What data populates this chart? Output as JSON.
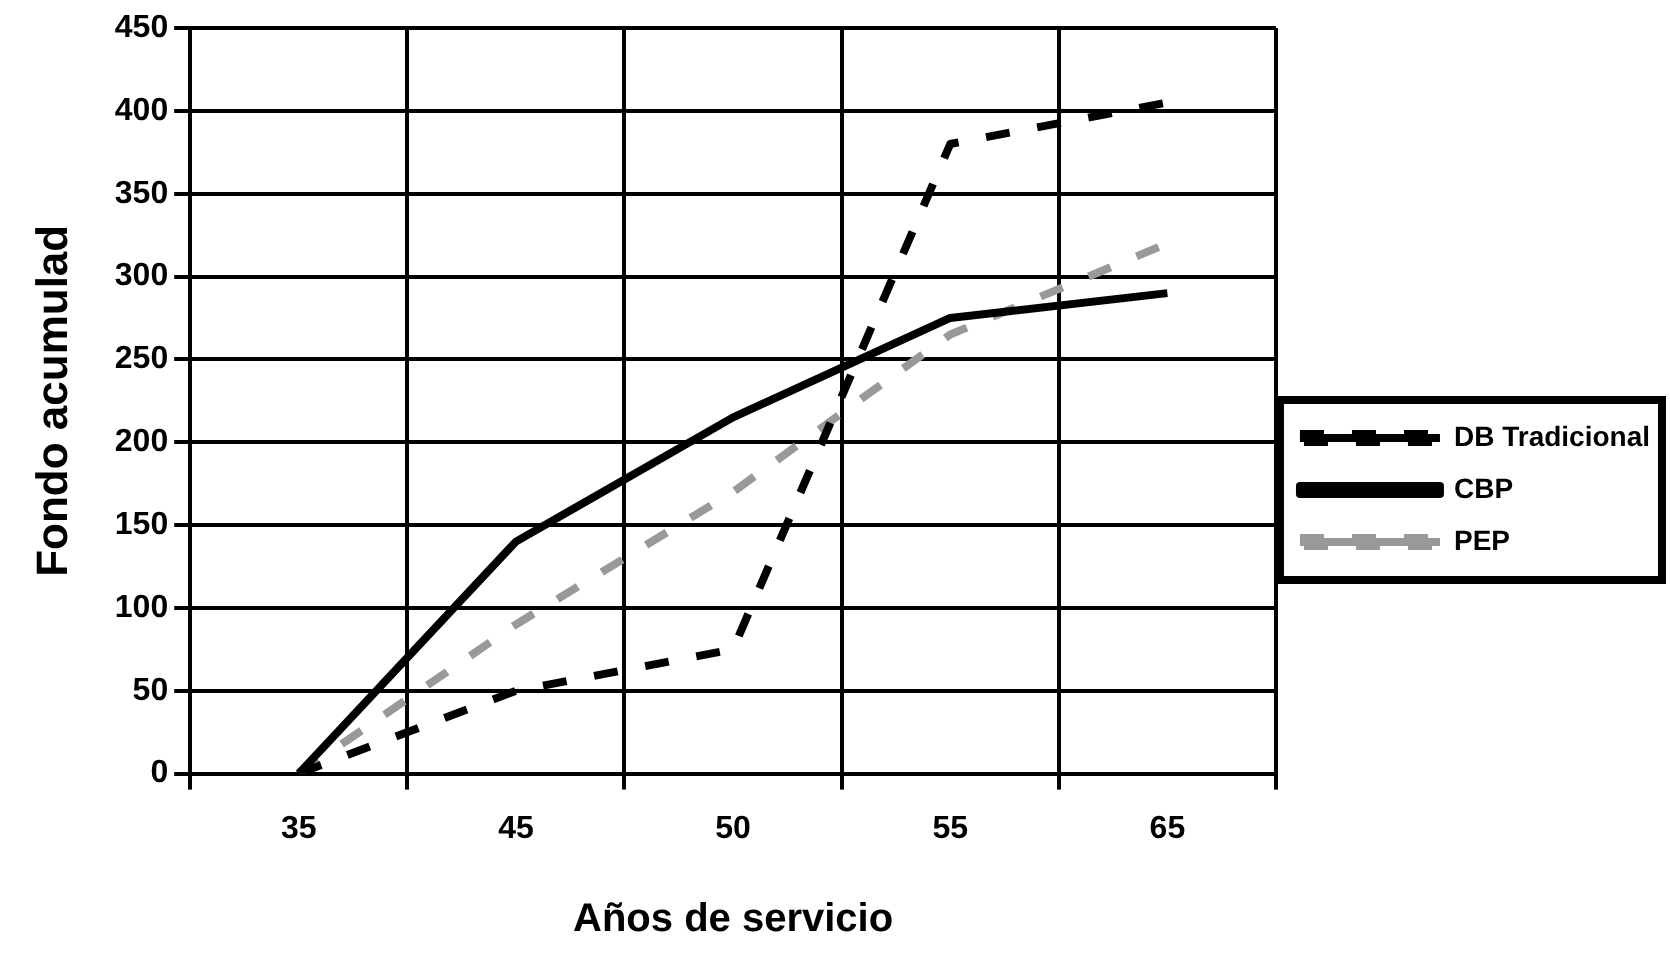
{
  "chart_data": {
    "type": "line",
    "xlabel": "Años de servicio",
    "ylabel": "Fondo acumulad",
    "categories": [
      "35",
      "45",
      "50",
      "55",
      "65"
    ],
    "series": [
      {
        "name": "DB Tradicional",
        "color": "#000000",
        "line_style": "dashed",
        "values": [
          0,
          50,
          75,
          380,
          405
        ]
      },
      {
        "name": "CBP",
        "color": "#000000",
        "line_style": "solid",
        "values": [
          0,
          140,
          215,
          275,
          290
        ]
      },
      {
        "name": "PEP",
        "color": "#999999",
        "line_style": "dashed",
        "values": [
          0,
          90,
          170,
          265,
          320
        ]
      }
    ],
    "ylim": [
      0,
      450
    ],
    "yticks": [
      0,
      50,
      100,
      150,
      200,
      250,
      300,
      350,
      400,
      450
    ],
    "grid": true,
    "legend": "right",
    "marker": "none"
  }
}
